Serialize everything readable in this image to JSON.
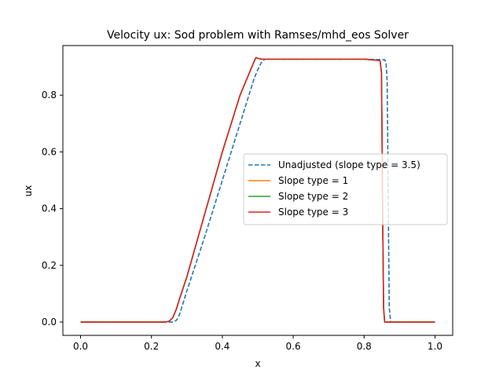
{
  "chart_data": {
    "type": "line",
    "title": "Velocity ux: Sod problem with Ramses/mhd_eos Solver",
    "xlabel": "x",
    "ylabel": "ux",
    "xlim": [
      -0.05,
      1.05
    ],
    "ylim": [
      -0.047,
      0.975
    ],
    "xticks": [
      0.0,
      0.2,
      0.4,
      0.6,
      0.8,
      1.0
    ],
    "xtick_labels": [
      "0.0",
      "0.2",
      "0.4",
      "0.6",
      "0.8",
      "1.0"
    ],
    "yticks": [
      0.0,
      0.2,
      0.4,
      0.6,
      0.8
    ],
    "ytick_labels": [
      "0.0",
      "0.2",
      "0.4",
      "0.6",
      "0.8"
    ],
    "grid": false,
    "legend_position": "center-right",
    "series": [
      {
        "name": "Unadjusted (slope type = 3.5)",
        "color": "#1f77b4",
        "dash": "dashed",
        "x": [
          0.0,
          0.26,
          0.265,
          0.27,
          0.275,
          0.28,
          0.29,
          0.3,
          0.35,
          0.4,
          0.45,
          0.49,
          0.5,
          0.51,
          0.52,
          0.6,
          0.7,
          0.8,
          0.858,
          0.862,
          0.865,
          0.867,
          0.869,
          0.871,
          0.875,
          0.9,
          1.0
        ],
        "y": [
          0.0,
          0.0,
          0.002,
          0.006,
          0.014,
          0.03,
          0.07,
          0.11,
          0.3,
          0.5,
          0.7,
          0.86,
          0.89,
          0.915,
          0.927,
          0.927,
          0.927,
          0.927,
          0.925,
          0.915,
          0.85,
          0.6,
          0.3,
          0.05,
          0.0,
          0.0,
          0.0
        ]
      },
      {
        "name": "Slope type = 1",
        "color": "#ff7f0e",
        "dash": "solid",
        "x": [
          0.0,
          0.24,
          0.25,
          0.26,
          0.27,
          0.28,
          0.3,
          0.35,
          0.4,
          0.45,
          0.48,
          0.49,
          0.495,
          0.5,
          0.51,
          0.53,
          0.6,
          0.7,
          0.8,
          0.845,
          0.849,
          0.851,
          0.853,
          0.855,
          0.858,
          0.9,
          1.0
        ],
        "y": [
          0.0,
          0.0,
          0.003,
          0.015,
          0.045,
          0.085,
          0.16,
          0.38,
          0.6,
          0.8,
          0.89,
          0.92,
          0.933,
          0.93,
          0.927,
          0.927,
          0.927,
          0.927,
          0.927,
          0.922,
          0.88,
          0.6,
          0.3,
          0.05,
          0.0,
          0.0,
          0.0
        ]
      },
      {
        "name": "Slope type = 2",
        "color": "#2ca02c",
        "dash": "solid",
        "x": [
          0.0,
          0.24,
          0.25,
          0.26,
          0.27,
          0.28,
          0.3,
          0.35,
          0.4,
          0.45,
          0.48,
          0.49,
          0.495,
          0.5,
          0.51,
          0.53,
          0.6,
          0.7,
          0.8,
          0.845,
          0.849,
          0.851,
          0.853,
          0.855,
          0.858,
          0.9,
          1.0
        ],
        "y": [
          0.0,
          0.0,
          0.003,
          0.015,
          0.045,
          0.085,
          0.16,
          0.38,
          0.6,
          0.8,
          0.89,
          0.92,
          0.933,
          0.93,
          0.927,
          0.927,
          0.927,
          0.927,
          0.927,
          0.922,
          0.88,
          0.6,
          0.3,
          0.05,
          0.0,
          0.0,
          0.0
        ]
      },
      {
        "name": "Slope type = 3",
        "color": "#d62728",
        "dash": "solid",
        "x": [
          0.0,
          0.24,
          0.25,
          0.26,
          0.27,
          0.28,
          0.3,
          0.35,
          0.4,
          0.45,
          0.48,
          0.49,
          0.495,
          0.5,
          0.51,
          0.53,
          0.6,
          0.7,
          0.8,
          0.845,
          0.849,
          0.851,
          0.853,
          0.855,
          0.858,
          0.9,
          1.0
        ],
        "y": [
          0.0,
          0.0,
          0.003,
          0.015,
          0.045,
          0.085,
          0.16,
          0.38,
          0.6,
          0.8,
          0.89,
          0.92,
          0.933,
          0.93,
          0.927,
          0.927,
          0.927,
          0.927,
          0.927,
          0.922,
          0.88,
          0.6,
          0.3,
          0.05,
          0.0,
          0.0,
          0.0
        ]
      }
    ]
  }
}
